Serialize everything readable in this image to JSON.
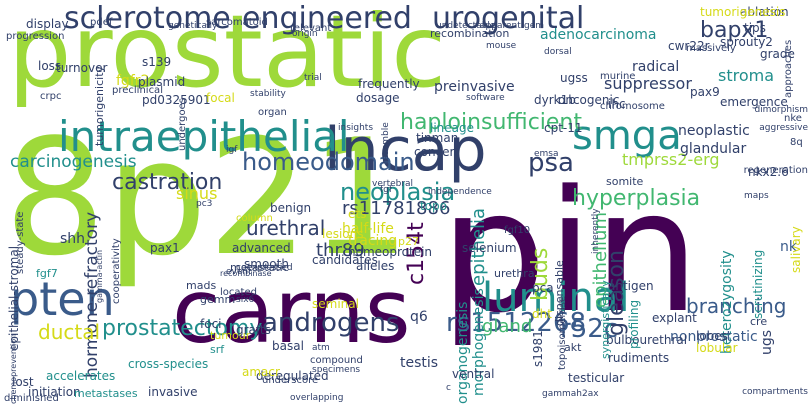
{
  "background": "#ffffff",
  "palette": {
    "lime": "#9ed93a",
    "purple": "#440154",
    "navy": "#31406a",
    "teal": "#218f8c",
    "green": "#41b770",
    "yellow": "#d5da18",
    "blue": "#3a5b8a"
  },
  "words": [
    "pin",
    "8p21",
    "prostatic",
    "carns",
    "lncap",
    "intraepithelial",
    "luminal",
    "pten",
    "smga",
    "sclerotome",
    "engineered",
    "urogenital",
    "androgens",
    "homeodomain",
    "psa",
    "neoplasia",
    "hyperplasia",
    "castration",
    "rs1512268",
    "r52c",
    "prostatectomy",
    "bapx1",
    "carcinogenesis",
    "haploinsufficient",
    "hormone-refractory",
    "gleason",
    "buds",
    "c154t",
    "epithelium",
    "urethral",
    "rs11781886",
    "ductal",
    "branching",
    "thr89",
    "gland",
    "shh",
    "epithelia",
    "tmprss2-erg",
    "sinus",
    "preinvasive",
    "suppressor",
    "radical",
    "stroma",
    "neoplastic",
    "fgfr2",
    "loss",
    "glandular",
    "testis",
    "nk",
    "ugs",
    "s139",
    "plasmid",
    "tumorigenicity",
    "pd0325901",
    "heterozygosity",
    "nonprostatic",
    "morphogenesis",
    "organogenesis",
    "metastatic",
    "tracing",
    "seminal",
    "half-life",
    "candidates",
    "mads",
    "gemm",
    "smooth",
    "advanced",
    "fgf7",
    "pax1",
    "foci",
    "tumour",
    "srf",
    "basal",
    "grafts",
    "cross-species",
    "accelerates",
    "initiation",
    "diminished",
    "metastases",
    "invasive",
    "deregulated",
    "ventral",
    "testicular",
    "explant",
    "lobular",
    "antigen",
    "selenium",
    "bulbourethral",
    "rudiments",
    "akt",
    "q6",
    "s1981",
    "dht",
    "pca",
    "alleles",
    "scrutinizing",
    "frequently",
    "dosage",
    "tinman",
    "concert",
    "oncogenic",
    "cwr22r",
    "pax9",
    "grade",
    "ablation",
    "tips",
    "adenocarcinoma",
    "sprouty2",
    "tumorigenesis",
    "emergence",
    "cpt-11",
    "ihc",
    "lineage",
    "dyrk1b",
    "topo",
    "benign",
    "homeoprotein",
    "epithelial-stromal",
    "steady-state",
    "cooperativity",
    "turnover",
    "display",
    "progression",
    "crpc",
    "ugss",
    "focal",
    "undergoes",
    "preclinical",
    "column",
    "p27",
    "ets",
    "lesions",
    "nkx2.6",
    "salivary",
    "profiling",
    "urethra",
    "amacr",
    "lobes",
    "cre",
    "dispensable",
    "synergistically",
    "massively",
    "approaches",
    "regeneration",
    "somite",
    "recombination",
    "sarcomatoid",
    "pdef",
    "undetectable",
    "apparent",
    "murine",
    "chromosome",
    "independence",
    "vertebral",
    "insights",
    "stability",
    "organ",
    "igf",
    "chemoprevention",
    "trial",
    "relevant",
    "genetically",
    "specimens",
    "compound",
    "atm",
    "underscore",
    "overlapping",
    "located",
    "recombinase",
    "event",
    "coexpressed",
    "six6",
    "pc3",
    "gamma-actin",
    "fgf10",
    "gammah2ax",
    "inherently",
    "topoisomerase",
    "compartments",
    "dimorphism",
    "aggressive",
    "maps",
    "fgf",
    "resemble",
    "software",
    "emsa",
    "gem",
    "mouse",
    "origin",
    "c",
    "dorsal",
    "lost",
    "nke",
    "8q",
    "ca"
  ]
}
